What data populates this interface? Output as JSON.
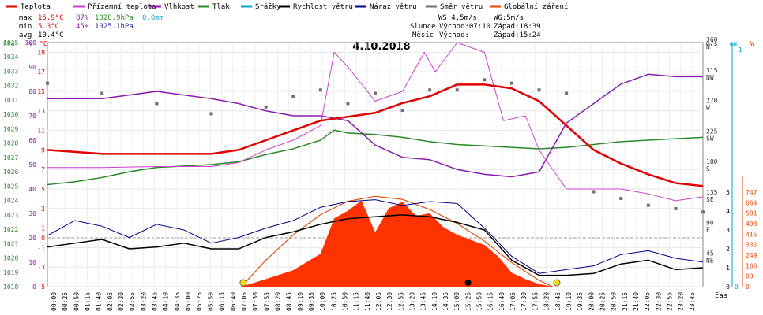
{
  "legend": [
    {
      "label": "Teplota",
      "color": "#e00000"
    },
    {
      "label": "Přízemní teplota",
      "color": "#d040d0"
    },
    {
      "label": "Vlhkost",
      "color": "#8a1ab0"
    },
    {
      "label": "Tlak",
      "color": "#2a8a2a"
    },
    {
      "label": "Srážky",
      "color": "#00a8c8"
    },
    {
      "label": "Rychlost větru",
      "color": "#000000"
    },
    {
      "label": "Náraz větru",
      "color": "#00008b"
    },
    {
      "label": "Směr větru",
      "color": "#707070"
    },
    {
      "label": "Globální záření",
      "color": "#f04000"
    }
  ],
  "stats": {
    "max": {
      "label": "max",
      "temp": "15.9°C",
      "hum": "87%",
      "press": "1028.9hPa",
      "rain": "0.0mm"
    },
    "min": {
      "label": "min",
      "temp": "5.3°C",
      "hum": "45%",
      "press": "1025.1hPa"
    },
    "avg": {
      "label": "avg",
      "temp": "10.4°C"
    }
  },
  "wind_info": {
    "ws": "WS:4.5m/s",
    "wg": "WG:5m/s"
  },
  "sun": {
    "label": "Slunce",
    "rise": "Východ:07:10",
    "set": "Západ:18:39"
  },
  "moon": {
    "label": "Měsíc",
    "rise": "Východ:",
    "set": "Západ:15:24"
  },
  "date": "4.10.2018",
  "axis_units": {
    "hpa": "hPa",
    "pct": "%",
    "degc": "°C",
    "ms": "m/s",
    "mm": "mm",
    "w": "W",
    "time": "čas"
  },
  "colors": {
    "temp": "#e00000",
    "ground": "#d040d0",
    "hum": "#8a1ab0",
    "press": "#2a8a2a",
    "rain": "#00a8c8",
    "speed": "#000000",
    "gust": "#00008b",
    "dir": "#707070",
    "rad_fill": "#ff3300",
    "rad_envelope": "#e05010",
    "sun": "#ffe000",
    "moon": "#000000"
  },
  "chart_data": {
    "type": "line",
    "title": "4.10.2018",
    "xlabel": "čas",
    "x_ticks": [
      "00:00",
      "00:25",
      "00:50",
      "01:15",
      "01:40",
      "02:05",
      "02:30",
      "02:55",
      "03:20",
      "03:45",
      "04:10",
      "04:35",
      "05:00",
      "05:25",
      "05:50",
      "06:15",
      "06:40",
      "07:05",
      "07:30",
      "07:55",
      "08:20",
      "08:45",
      "09:10",
      "09:35",
      "10:00",
      "10:25",
      "10:50",
      "11:15",
      "11:40",
      "12:05",
      "12:30",
      "12:55",
      "13:20",
      "13:45",
      "14:10",
      "14:35",
      "15:00",
      "15:25",
      "15:50",
      "16:15",
      "16:40",
      "17:05",
      "17:30",
      "17:55",
      "18:20",
      "18:45",
      "19:10",
      "19:35",
      "20:00",
      "20:25",
      "20:50",
      "21:15",
      "21:40",
      "22:05",
      "22:30",
      "22:55",
      "23:20",
      "23:45"
    ],
    "axes": {
      "pressure_hpa": {
        "min": 1018,
        "max": 1035,
        "ticks": [
          "1018",
          "1019",
          "1020",
          "1021",
          "1022",
          "1023",
          "1024",
          "1025",
          "1026",
          "1027",
          "1028",
          "1029",
          "1030",
          "1031",
          "1032",
          "1033",
          "1034",
          "1035"
        ]
      },
      "humidity_pct": {
        "min": 0,
        "max": 100,
        "ticks": [
          "0",
          "10",
          "20",
          "30",
          "40",
          "50",
          "60",
          "70",
          "80",
          "90",
          "100"
        ]
      },
      "temperature_c": {
        "min": -5,
        "max": 20,
        "ticks": [
          "-5",
          "-3",
          "-1",
          "0",
          "1",
          "3",
          "5",
          "7",
          "9",
          "11",
          "13",
          "15",
          "17",
          "19"
        ]
      },
      "wind_direction": {
        "min": 0,
        "max": 360,
        "ticks": [
          {
            "deg": "45",
            "dir": "NE"
          },
          {
            "deg": "90",
            "dir": "E"
          },
          {
            "deg": "135",
            "dir": "SE"
          },
          {
            "deg": "180",
            "dir": "S"
          },
          {
            "deg": "225",
            "dir": "SW"
          },
          {
            "deg": "270",
            "dir": "W"
          },
          {
            "deg": "315",
            "dir": "NW"
          },
          {
            "deg": "360",
            "dir": "N"
          }
        ]
      },
      "wind_speed_ms": {
        "min": 0,
        "max": 5,
        "ticks": [
          "0",
          "1",
          "2",
          "3",
          "4",
          "5"
        ]
      },
      "rain_mm": {
        "ticks": [
          "0",
          "-1"
        ]
      },
      "radiation_w": {
        "min": 0,
        "max": 747,
        "ticks": [
          "0",
          "83",
          "166",
          "249",
          "332",
          "415",
          "498",
          "581",
          "664",
          "747"
        ]
      }
    },
    "series": [
      {
        "name": "Teplota",
        "unit": "°C",
        "x": [
          0,
          2,
          4,
          6,
          7,
          8,
          9,
          10,
          11,
          12,
          13,
          14,
          15,
          16,
          17,
          18,
          19,
          20,
          21,
          22,
          23,
          24
        ],
        "values": [
          9.0,
          8.6,
          8.6,
          8.6,
          9.0,
          10.0,
          11.0,
          12.0,
          12.4,
          12.8,
          13.8,
          14.5,
          15.7,
          15.7,
          15.3,
          14.0,
          11.5,
          9.0,
          7.6,
          6.5,
          5.6,
          5.3
        ]
      },
      {
        "name": "Přízemní teplota",
        "unit": "°C",
        "x": [
          0,
          2,
          4,
          6,
          7,
          8,
          9,
          10,
          10.5,
          11,
          12,
          13,
          13.8,
          14.2,
          15,
          16,
          16.7,
          17.5,
          18,
          19,
          20,
          21,
          22,
          23,
          24
        ],
        "values": [
          7.2,
          7.2,
          7.3,
          7.3,
          7.7,
          9.0,
          10.0,
          11.5,
          19.0,
          17.5,
          14.0,
          15.0,
          19.0,
          17.0,
          20.0,
          19.0,
          12.0,
          12.5,
          9.0,
          5.0,
          5.0,
          5.0,
          4.5,
          3.8,
          4.2
        ]
      },
      {
        "name": "Vlhkost",
        "unit": "%",
        "x": [
          0,
          2,
          4,
          6,
          7,
          8,
          9,
          10,
          11,
          12,
          13,
          14,
          15,
          16,
          17,
          18,
          19,
          20,
          21,
          22,
          23,
          24
        ],
        "values": [
          77,
          77,
          80,
          77,
          75,
          72,
          70,
          70,
          68,
          58,
          53,
          52,
          48,
          46,
          45,
          47,
          67,
          75,
          83,
          87,
          86,
          86
        ]
      },
      {
        "name": "Tlak",
        "unit": "hPa",
        "x": [
          0,
          1,
          2,
          3,
          4,
          5,
          6,
          7,
          8,
          9,
          10,
          10.5,
          11,
          12,
          13,
          14,
          15,
          16,
          17,
          18,
          19,
          20,
          21,
          22,
          23,
          24
        ],
        "values": [
          1025.1,
          1025.3,
          1025.6,
          1026.0,
          1026.3,
          1026.4,
          1026.5,
          1026.7,
          1027.2,
          1027.6,
          1028.2,
          1028.9,
          1028.7,
          1028.6,
          1028.4,
          1028.1,
          1027.9,
          1027.8,
          1027.7,
          1027.6,
          1027.7,
          1027.9,
          1028.1,
          1028.2,
          1028.3,
          1028.4
        ]
      },
      {
        "name": "Rychlost větru",
        "unit": "m/s",
        "x": [
          0,
          1,
          2,
          3,
          4,
          5,
          6,
          7,
          8,
          9,
          10,
          11,
          12,
          13,
          14,
          15,
          16,
          17,
          18,
          19,
          20,
          21,
          22,
          23,
          24
        ],
        "values": [
          2.1,
          2.3,
          2.5,
          2.0,
          2.1,
          2.3,
          2.0,
          2.0,
          2.6,
          2.9,
          3.3,
          3.6,
          3.7,
          3.8,
          3.7,
          3.4,
          3.0,
          1.4,
          0.6,
          0.6,
          0.7,
          1.2,
          1.4,
          0.9,
          1.0
        ]
      },
      {
        "name": "Náraz větru",
        "unit": "m/s",
        "x": [
          0,
          1,
          2,
          3,
          4,
          5,
          6,
          7,
          8,
          9,
          10,
          11,
          12,
          13,
          14,
          15,
          16,
          17,
          18,
          19,
          20,
          21,
          22,
          23,
          24
        ],
        "values": [
          2.7,
          3.5,
          3.2,
          2.6,
          3.3,
          3.0,
          2.3,
          2.6,
          3.1,
          3.5,
          4.2,
          4.5,
          4.6,
          4.3,
          4.5,
          4.4,
          3.1,
          1.6,
          0.7,
          0.9,
          1.1,
          1.7,
          1.9,
          1.5,
          1.3
        ]
      },
      {
        "name": "Směr větru",
        "unit": "°",
        "x": [
          0,
          2,
          4,
          6,
          8,
          9,
          10,
          11,
          12,
          13,
          14,
          15,
          16,
          17,
          18,
          19,
          20,
          21,
          22,
          23,
          24
        ],
        "values": [
          300,
          285,
          270,
          255,
          265,
          280,
          290,
          270,
          285,
          260,
          290,
          290,
          305,
          300,
          290,
          285,
          140,
          130,
          120,
          115,
          110
        ]
      },
      {
        "name": "Globální záření",
        "unit": "W/m²",
        "x": [
          7.1,
          8,
          9,
          10,
          10.5,
          11,
          11.5,
          12,
          12.5,
          13,
          13.5,
          14,
          14.5,
          15,
          15.5,
          16,
          16.5,
          17,
          17.5,
          18,
          18.5
        ],
        "values": [
          0,
          60,
          130,
          260,
          540,
          600,
          680,
          430,
          620,
          670,
          560,
          580,
          470,
          410,
          370,
          330,
          240,
          110,
          60,
          20,
          0
        ]
      },
      {
        "name": "Globální záření (max)",
        "unit": "W/m²",
        "x": [
          7.1,
          8,
          9,
          10,
          11,
          12,
          13,
          14,
          15,
          16,
          17,
          18,
          18.5
        ],
        "values": [
          0,
          210,
          410,
          570,
          675,
          715,
          690,
          610,
          500,
          360,
          190,
          50,
          0
        ]
      }
    ],
    "markers": {
      "sunrise": "07:10",
      "sunset": "18:39",
      "moonset": "15:24"
    },
    "grid": true
  }
}
